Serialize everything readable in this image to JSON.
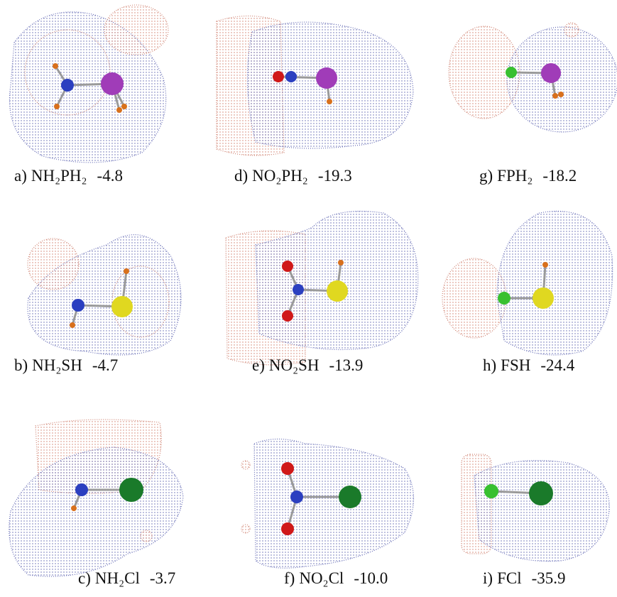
{
  "panels": [
    {
      "letter": "a)",
      "formula": "NH₂PH₂",
      "energy": "-4.8"
    },
    {
      "letter": "d)",
      "formula": "NO₂PH₂",
      "energy": "-19.3"
    },
    {
      "letter": "g)",
      "formula": "FPH₂",
      "energy": "-18.2"
    },
    {
      "letter": "b)",
      "formula": "NH₂SH",
      "energy": "-4.7"
    },
    {
      "letter": "e)",
      "formula": "NO₂SH",
      "energy": "-13.9"
    },
    {
      "letter": "h)",
      "formula": "FSH",
      "energy": "-24.4"
    },
    {
      "letter": "c)",
      "formula": "NH₂Cl",
      "energy": "-3.7"
    },
    {
      "letter": "f)",
      "formula": "NO₂Cl",
      "energy": "-10.0"
    },
    {
      "letter": "i)",
      "formula": "FCl",
      "energy": "-35.9"
    }
  ]
}
